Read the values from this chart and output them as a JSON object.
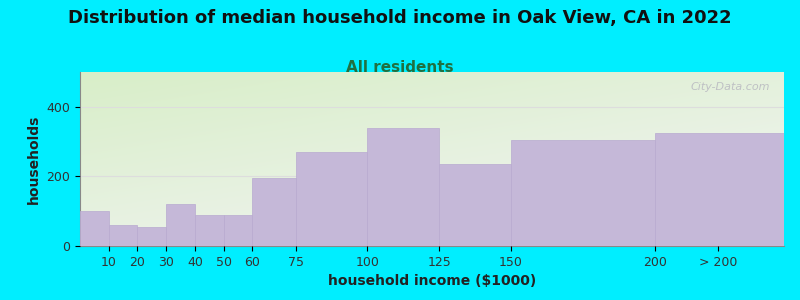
{
  "title": "Distribution of median household income in Oak View, CA in 2022",
  "subtitle": "All residents",
  "xlabel": "household income ($1000)",
  "ylabel": "households",
  "categories": [
    "10",
    "20",
    "30",
    "40",
    "50",
    "60",
    "75",
    "100",
    "125",
    "150",
    "200",
    "> 200"
  ],
  "values": [
    100,
    60,
    55,
    120,
    90,
    90,
    195,
    270,
    340,
    235,
    305,
    325
  ],
  "bar_color": "#c5b8d8",
  "bar_edge_color": "#b8aad0",
  "background_outer": "#00eeff",
  "plot_bg_top_left": "#d8eec8",
  "plot_bg_bottom_right": "#f5f5f8",
  "title_fontsize": 13,
  "subtitle_fontsize": 11,
  "subtitle_color": "#207040",
  "axis_label_fontsize": 10,
  "tick_fontsize": 9,
  "ylim": [
    0,
    500
  ],
  "yticks": [
    0,
    200,
    400
  ],
  "watermark_text": "City-Data.com",
  "watermark_color": "#b8b8c0",
  "left_edges": [
    0,
    10,
    20,
    30,
    40,
    50,
    60,
    75,
    100,
    125,
    150,
    200
  ],
  "right_edges": [
    10,
    20,
    30,
    40,
    50,
    60,
    75,
    100,
    125,
    150,
    200,
    245
  ],
  "tick_positions": [
    10,
    20,
    30,
    40,
    50,
    60,
    75,
    100,
    125,
    150,
    200,
    222
  ],
  "xlim": [
    0,
    245
  ]
}
